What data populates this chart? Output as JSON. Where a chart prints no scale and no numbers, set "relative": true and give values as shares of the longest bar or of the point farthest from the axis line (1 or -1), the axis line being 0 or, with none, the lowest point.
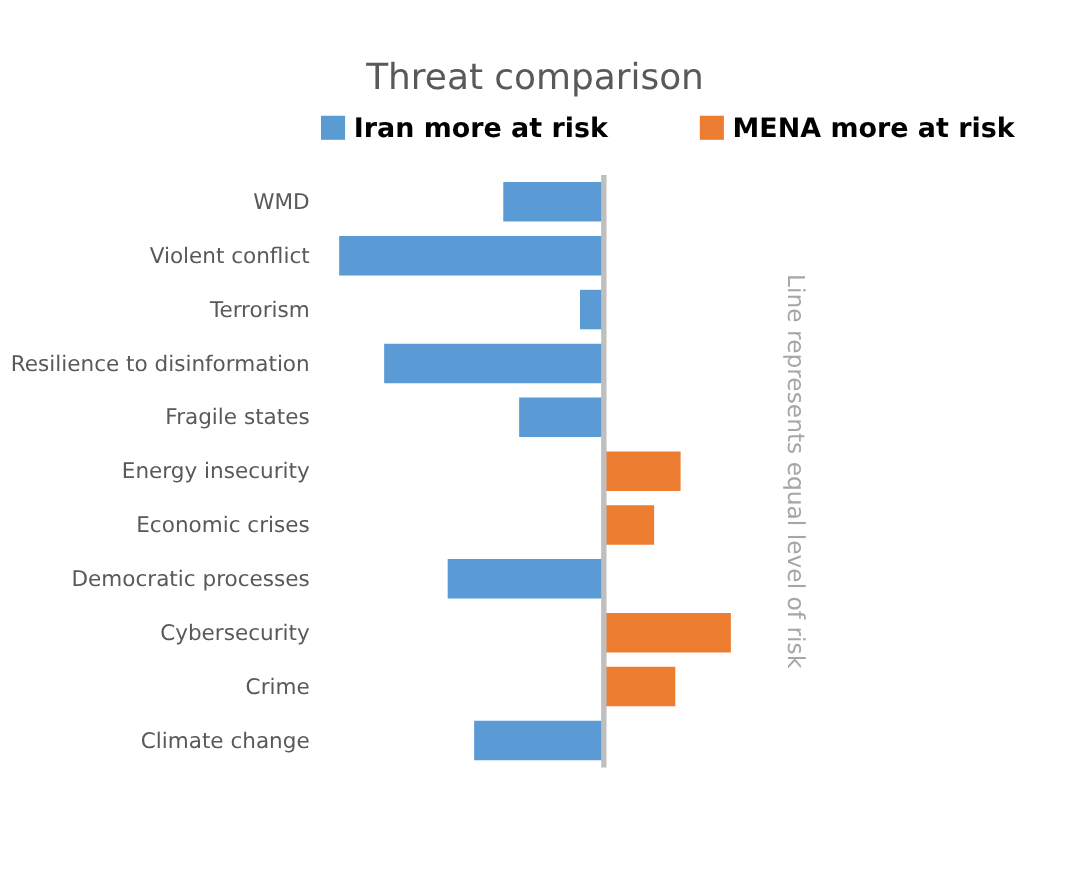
{
  "chart_data": {
    "type": "bar",
    "title": "Threat comparison",
    "orientation": "horizontal",
    "relative": true,
    "legend": "top",
    "categories": [
      "WMD",
      "Violent conflict",
      "Terrorism",
      "Resilience to disinformation",
      "Fragile states",
      "Energy insecurity",
      "Economic crises",
      "Democratic processes",
      "Cybersecurity",
      "Crime",
      "Climate change"
    ],
    "series": [
      {
        "name": "Iran more at risk",
        "color": "#5b9bd5",
        "values": [
          -0.38,
          -1,
          -0.09,
          -0.83,
          -0.32,
          null,
          null,
          -0.59,
          null,
          null,
          -0.49
        ]
      },
      {
        "name": "MENA more at risk",
        "color": "#ed7d31",
        "values": [
          null,
          null,
          null,
          null,
          null,
          0.29,
          0.19,
          null,
          0.48,
          0.27,
          null
        ]
      }
    ],
    "ref_lines": [
      {
        "axis": "x",
        "value": 0,
        "color": "#bfbfbf"
      }
    ],
    "annotations": [
      "Line represents equal level of risk"
    ],
    "grid": false
  }
}
